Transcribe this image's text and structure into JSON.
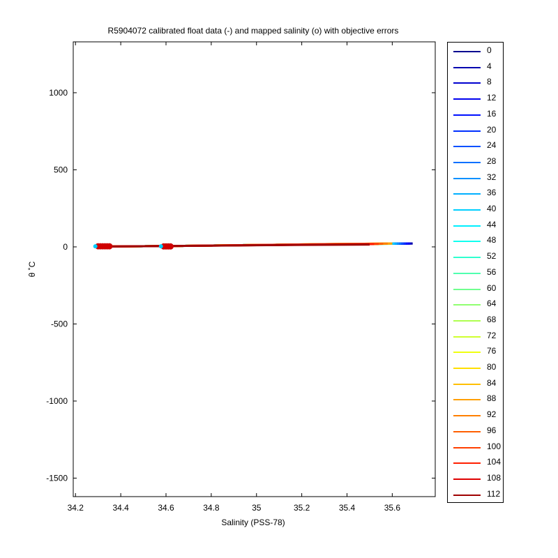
{
  "chart_data": {
    "type": "line",
    "title": "R5904072 calibrated float data (-) and mapped salinity (o) with objective errors",
    "xlabel": "Salinity (PSS-78)",
    "ylabel": "θ ˚C",
    "xlim": [
      34.19,
      35.79
    ],
    "ylim": [
      -1620,
      1330
    ],
    "xticks": [
      34.2,
      34.4,
      34.6,
      34.8,
      35,
      35.2,
      35.4,
      35.6
    ],
    "xtick_labels": [
      "34.2",
      "34.4",
      "34.6",
      "34.8",
      "35",
      "35.2",
      "35.4",
      "35.6"
    ],
    "yticks": [
      1000,
      500,
      0,
      -500,
      -1000,
      -1500
    ],
    "ytick_labels": [
      "1000",
      "500",
      "0",
      "-500",
      "-1000",
      "-1500"
    ],
    "grid": false,
    "legend_position": "outside-right",
    "series": [
      {
        "name": "0",
        "color": "#00008F",
        "x": [
          34.3,
          34.6,
          35.0,
          35.4,
          35.69
        ],
        "y": [
          2,
          5,
          12,
          18,
          22
        ]
      },
      {
        "name": "4",
        "color": "#0000AF",
        "x": [
          34.3,
          34.6,
          35.0,
          35.4,
          35.69
        ],
        "y": [
          2,
          5,
          12,
          18,
          22
        ]
      },
      {
        "name": "8",
        "color": "#0000CF",
        "x": [
          34.3,
          34.6,
          35.0,
          35.4,
          35.68
        ],
        "y": [
          2,
          5,
          12,
          18,
          22
        ]
      },
      {
        "name": "12",
        "color": "#0000EF",
        "x": [
          34.3,
          34.6,
          35.0,
          35.4,
          35.68
        ],
        "y": [
          2,
          5,
          12,
          18,
          22
        ]
      },
      {
        "name": "16",
        "color": "#0010FF",
        "x": [
          34.3,
          34.6,
          35.0,
          35.4,
          35.67
        ],
        "y": [
          2,
          5,
          12,
          18,
          22
        ]
      },
      {
        "name": "20",
        "color": "#0030FF",
        "x": [
          34.3,
          34.6,
          35.0,
          35.4,
          35.66
        ],
        "y": [
          2,
          5,
          12,
          18,
          22
        ]
      },
      {
        "name": "24",
        "color": "#0050FF",
        "x": [
          34.3,
          34.6,
          35.0,
          35.4,
          35.65
        ],
        "y": [
          2,
          5,
          12,
          18,
          22
        ]
      },
      {
        "name": "28",
        "color": "#0070FF",
        "x": [
          34.3,
          34.6,
          35.0,
          35.4,
          35.64
        ],
        "y": [
          2,
          5,
          12,
          18,
          21
        ]
      },
      {
        "name": "32",
        "color": "#0090FF",
        "x": [
          34.3,
          34.6,
          35.0,
          35.4,
          35.63
        ],
        "y": [
          2,
          5,
          12,
          18,
          21
        ]
      },
      {
        "name": "36",
        "color": "#00AFFF",
        "x": [
          34.3,
          34.6,
          35.0,
          35.4,
          35.62
        ],
        "y": [
          2,
          5,
          12,
          18,
          21
        ]
      },
      {
        "name": "40",
        "color": "#00CFFF",
        "x": [
          34.3,
          34.6,
          35.0,
          35.4,
          35.61
        ],
        "y": [
          2,
          5,
          12,
          18,
          21
        ]
      },
      {
        "name": "44",
        "color": "#00EFFF",
        "x": [
          34.3,
          34.6,
          35.0,
          35.4,
          35.6
        ],
        "y": [
          2,
          5,
          12,
          18,
          21
        ]
      },
      {
        "name": "48",
        "color": "#10FFEF",
        "x": [
          34.3,
          34.6,
          35.0,
          35.4,
          35.6
        ],
        "y": [
          2,
          5,
          12,
          18,
          20
        ]
      },
      {
        "name": "52",
        "color": "#30FFCF",
        "x": [
          34.3,
          34.6,
          35.0,
          35.4,
          35.59
        ],
        "y": [
          2,
          5,
          12,
          18,
          20
        ]
      },
      {
        "name": "56",
        "color": "#50FFAF",
        "x": [
          34.3,
          34.6,
          35.0,
          35.4,
          35.59
        ],
        "y": [
          2,
          5,
          12,
          18,
          20
        ]
      },
      {
        "name": "60",
        "color": "#70FF8F",
        "x": [
          34.3,
          34.6,
          35.0,
          35.4,
          35.58
        ],
        "y": [
          2,
          5,
          12,
          18,
          20
        ]
      },
      {
        "name": "64",
        "color": "#90FF70",
        "x": [
          34.3,
          34.6,
          35.0,
          35.4,
          35.58
        ],
        "y": [
          2,
          5,
          12,
          18,
          20
        ]
      },
      {
        "name": "68",
        "color": "#AFFF50",
        "x": [
          34.3,
          34.6,
          35.0,
          35.4,
          35.57
        ],
        "y": [
          2,
          5,
          12,
          18,
          20
        ]
      },
      {
        "name": "72",
        "color": "#CFFF30",
        "x": [
          34.3,
          34.6,
          35.0,
          35.4,
          35.57
        ],
        "y": [
          2,
          5,
          12,
          18,
          20
        ]
      },
      {
        "name": "76",
        "color": "#EFFF10",
        "x": [
          34.3,
          34.6,
          35.0,
          35.4,
          35.56
        ],
        "y": [
          2,
          5,
          12,
          18,
          20
        ]
      },
      {
        "name": "80",
        "color": "#FFDF00",
        "x": [
          34.3,
          34.6,
          35.0,
          35.3,
          35.6
        ],
        "y": [
          2,
          5,
          12,
          18,
          22
        ]
      },
      {
        "name": "84",
        "color": "#FFBF00",
        "x": [
          34.3,
          34.6,
          35.0,
          35.3,
          35.6
        ],
        "y": [
          2,
          5,
          12,
          18,
          22
        ]
      },
      {
        "name": "88",
        "color": "#FF9F00",
        "x": [
          34.3,
          34.6,
          35.0,
          35.3,
          35.6
        ],
        "y": [
          2,
          5,
          12,
          18,
          22
        ]
      },
      {
        "name": "92",
        "color": "#FF7F00",
        "x": [
          34.3,
          34.6,
          35.0,
          35.3,
          35.58
        ],
        "y": [
          2,
          5,
          12,
          18,
          21
        ]
      },
      {
        "name": "96",
        "color": "#FF5F00",
        "x": [
          34.3,
          34.6,
          35.0,
          35.3,
          35.56
        ],
        "y": [
          2,
          5,
          12,
          17,
          20
        ]
      },
      {
        "name": "100",
        "color": "#FF3F00",
        "x": [
          34.3,
          34.6,
          35.0,
          35.3,
          35.54
        ],
        "y": [
          2,
          5,
          12,
          17,
          19
        ]
      },
      {
        "name": "104",
        "color": "#FF1F00",
        "x": [
          34.3,
          34.6,
          35.0,
          35.3,
          35.52
        ],
        "y": [
          2,
          5,
          11,
          16,
          18
        ]
      },
      {
        "name": "108",
        "color": "#DF0000",
        "x": [
          34.3,
          34.6,
          35.0,
          35.3,
          35.5
        ],
        "y": [
          2,
          5,
          11,
          15,
          17
        ]
      },
      {
        "name": "112",
        "color": "#9F0000",
        "x": [
          34.3,
          34.6,
          34.95,
          35.2,
          35.5
        ],
        "y": [
          2,
          5,
          10,
          13,
          15
        ]
      }
    ],
    "mapped_salinity": {
      "marker": "o",
      "color": "#CF0000",
      "points": [
        {
          "x": 34.3,
          "y": 4
        },
        {
          "x": 34.31,
          "y": 4
        },
        {
          "x": 34.32,
          "y": 4
        },
        {
          "x": 34.33,
          "y": 4
        },
        {
          "x": 34.34,
          "y": 4
        },
        {
          "x": 34.35,
          "y": 4
        },
        {
          "x": 34.59,
          "y": 3
        },
        {
          "x": 34.6,
          "y": 3
        },
        {
          "x": 34.61,
          "y": 3
        },
        {
          "x": 34.62,
          "y": 3
        }
      ]
    }
  }
}
